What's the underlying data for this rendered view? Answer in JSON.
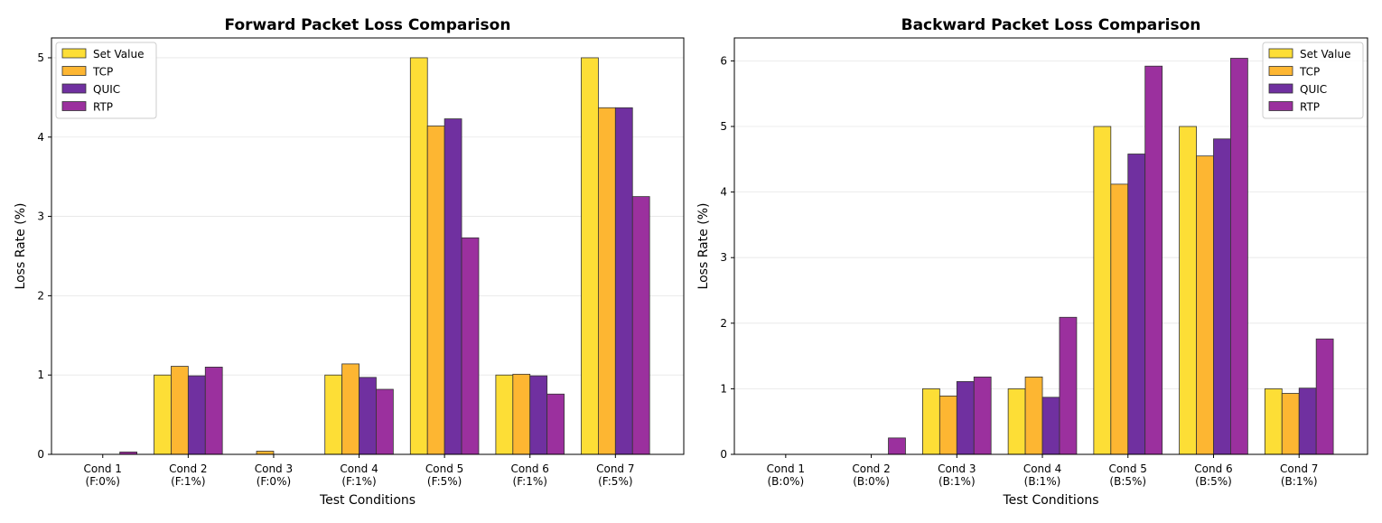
{
  "chart_data": [
    {
      "type": "bar",
      "title": "Forward Packet Loss Comparison",
      "xlabel": "Test Conditions",
      "ylabel": "Loss Rate (%)",
      "categories": [
        [
          "Cond 1",
          "(F:0%)"
        ],
        [
          "Cond 2",
          "(F:1%)"
        ],
        [
          "Cond 3",
          "(F:0%)"
        ],
        [
          "Cond 4",
          "(F:1%)"
        ],
        [
          "Cond 5",
          "(F:5%)"
        ],
        [
          "Cond 6",
          "(F:1%)"
        ],
        [
          "Cond 7",
          "(F:5%)"
        ]
      ],
      "ylim": [
        0,
        5.25
      ],
      "yticks": [
        0,
        1,
        2,
        3,
        4,
        5
      ],
      "grid": true,
      "legend_position": "top-left",
      "series": [
        {
          "name": "Set Value",
          "color": "#FDDE36",
          "values": [
            0,
            1,
            0,
            1,
            5,
            1,
            5
          ]
        },
        {
          "name": "TCP",
          "color": "#FDB632",
          "values": [
            0,
            1.11,
            0.04,
            1.14,
            4.14,
            1.01,
            4.37
          ]
        },
        {
          "name": "QUIC",
          "color": "#7030A0",
          "values": [
            0.001,
            0.99,
            0.001,
            0.97,
            4.23,
            0.99,
            4.37
          ]
        },
        {
          "name": "RTP",
          "color": "#9B309E",
          "values": [
            0.03,
            1.1,
            0.001,
            0.82,
            2.73,
            0.76,
            3.25
          ]
        }
      ]
    },
    {
      "type": "bar",
      "title": "Backward Packet Loss Comparison",
      "xlabel": "Test Conditions",
      "ylabel": "Loss Rate (%)",
      "categories": [
        [
          "Cond 1",
          "(B:0%)"
        ],
        [
          "Cond 2",
          "(B:0%)"
        ],
        [
          "Cond 3",
          "(B:1%)"
        ],
        [
          "Cond 4",
          "(B:1%)"
        ],
        [
          "Cond 5",
          "(B:5%)"
        ],
        [
          "Cond 6",
          "(B:5%)"
        ],
        [
          "Cond 7",
          "(B:1%)"
        ]
      ],
      "ylim": [
        0,
        6.35
      ],
      "yticks": [
        0,
        1,
        2,
        3,
        4,
        5,
        6
      ],
      "grid": true,
      "legend_position": "top-right",
      "series": [
        {
          "name": "Set Value",
          "color": "#FDDE36",
          "values": [
            0,
            0,
            1,
            1,
            5,
            5,
            1
          ]
        },
        {
          "name": "TCP",
          "color": "#FDB632",
          "values": [
            0.001,
            0.001,
            0.89,
            1.18,
            4.12,
            4.55,
            0.93
          ]
        },
        {
          "name": "QUIC",
          "color": "#7030A0",
          "values": [
            0.001,
            0.001,
            1.11,
            0.87,
            4.58,
            4.81,
            1.01
          ]
        },
        {
          "name": "RTP",
          "color": "#9B309E",
          "values": [
            0.001,
            0.25,
            1.18,
            2.09,
            5.92,
            6.04,
            1.76
          ]
        }
      ]
    }
  ]
}
